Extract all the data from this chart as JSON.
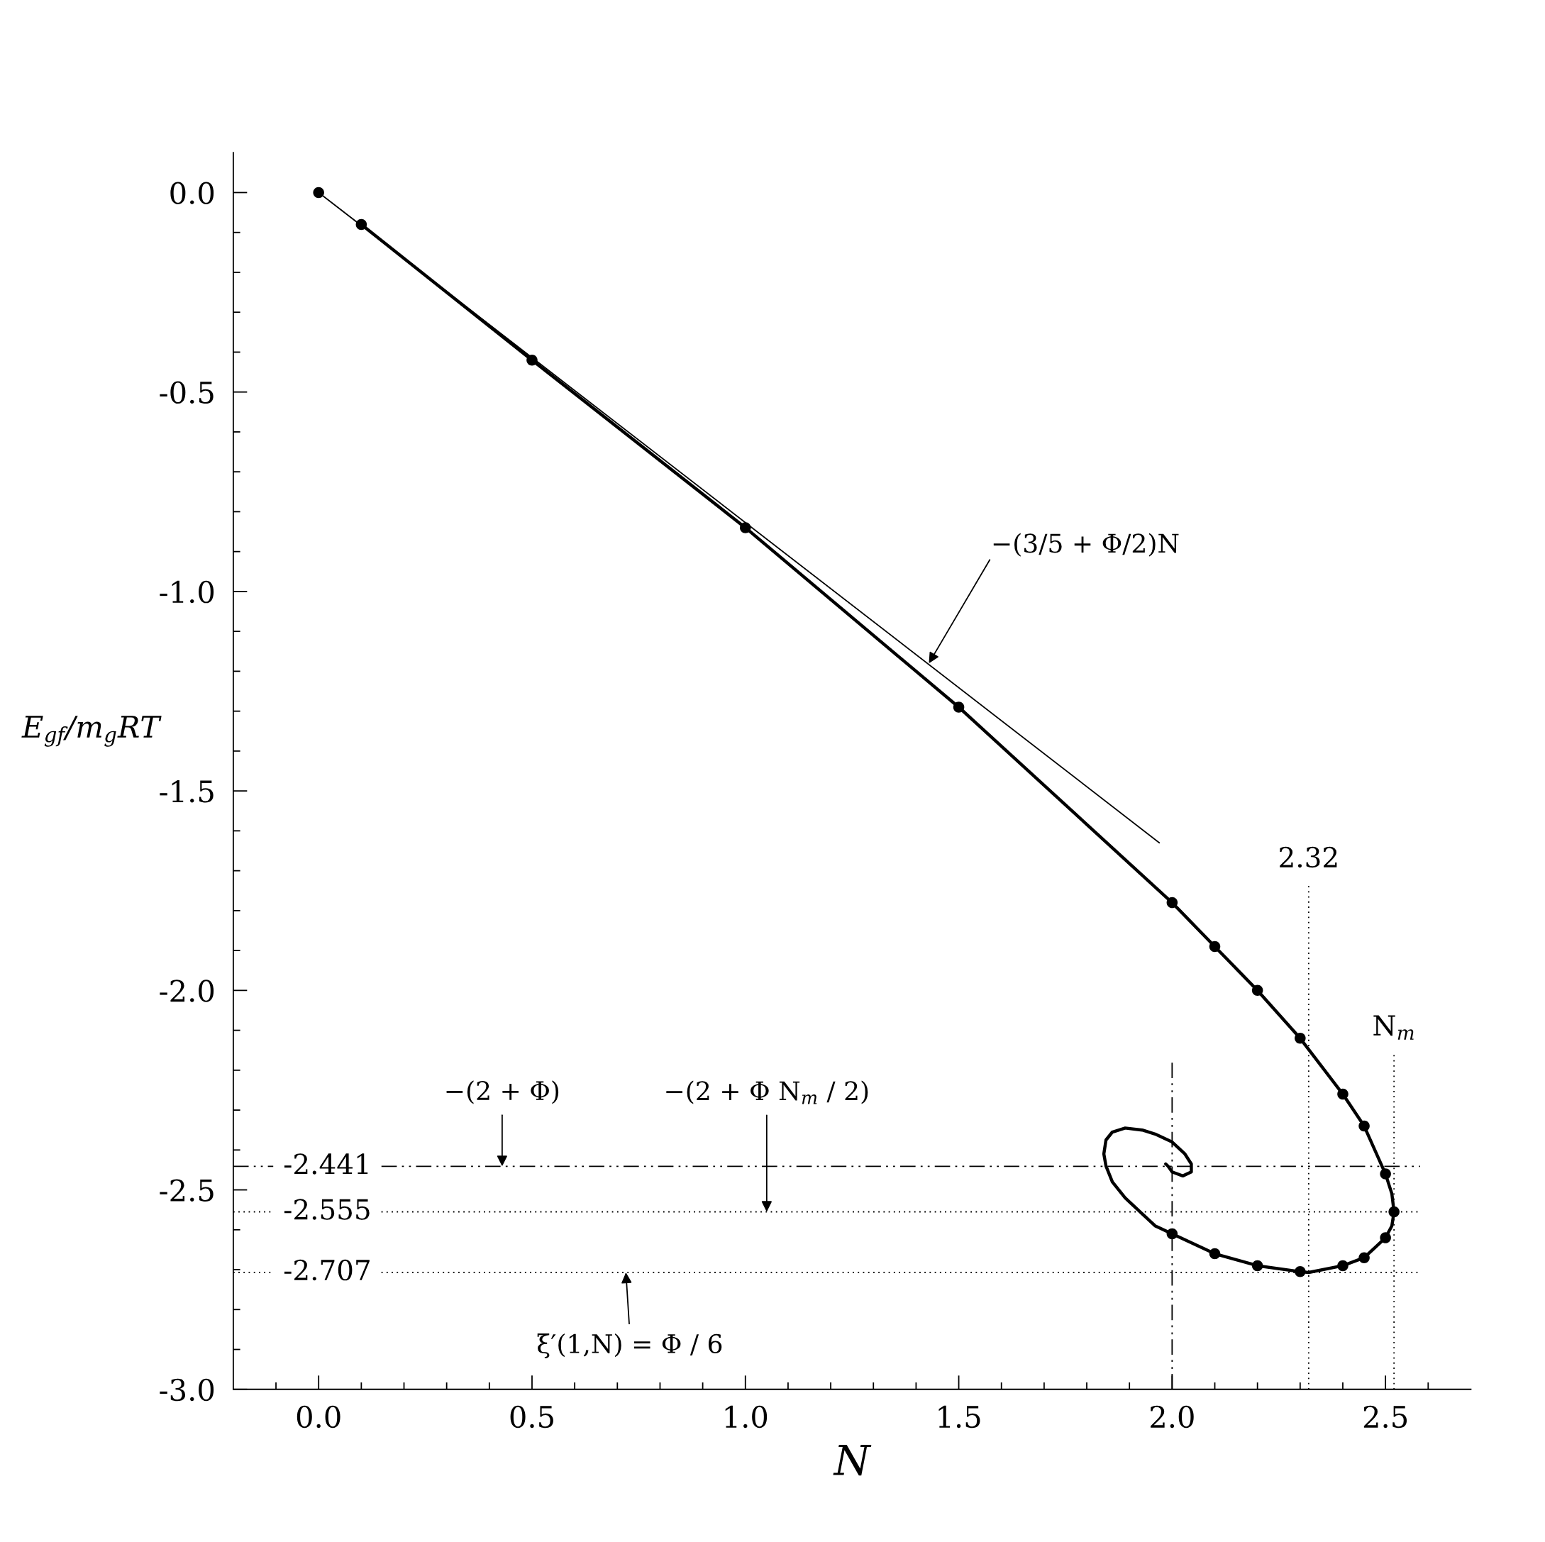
{
  "chart_data": {
    "type": "line",
    "xlabel": "N",
    "ylabel": "E$_{gf}$/m$_{g}$RT",
    "xlim": [
      -0.2,
      2.7
    ],
    "ylim": [
      -3.0,
      0.1
    ],
    "xticks": [
      {
        "value": -0.1,
        "label": null
      },
      {
        "value": 0,
        "label": "0.0"
      },
      {
        "value": 0.1,
        "label": null
      },
      {
        "value": 0.2,
        "label": null
      },
      {
        "value": 0.3,
        "label": null
      },
      {
        "value": 0.4,
        "label": null
      },
      0.5,
      {
        "value": 0.6,
        "label": null
      },
      {
        "value": 0.7,
        "label": null
      },
      {
        "value": 0.8,
        "label": null
      },
      {
        "value": 0.9,
        "label": null
      },
      {
        "value": 1,
        "label": "1.0"
      },
      {
        "value": 1.1,
        "label": null
      },
      {
        "value": 1.2,
        "label": null
      },
      {
        "value": 1.3,
        "label": null
      },
      {
        "value": 1.4,
        "label": null
      },
      1.5,
      {
        "value": 1.6,
        "label": null
      },
      {
        "value": 1.7,
        "label": null
      },
      {
        "value": 1.8,
        "label": null
      },
      {
        "value": 1.9,
        "label": null
      },
      {
        "value": 2,
        "label": "2.0"
      },
      {
        "value": 2.1,
        "label": null
      },
      {
        "value": 2.2,
        "label": null
      },
      {
        "value": 2.3,
        "label": null
      },
      {
        "value": 2.4,
        "label": null
      },
      2.5,
      {
        "value": 2.6,
        "label": null
      }
    ],
    "yticks": [
      {
        "value": 0,
        "label": "0.0"
      },
      {
        "value": -0.1,
        "label": null
      },
      {
        "value": -0.2,
        "label": null
      },
      {
        "value": -0.3,
        "label": null
      },
      {
        "value": -0.4,
        "label": null
      },
      -0.5,
      {
        "value": -0.6,
        "label": null
      },
      {
        "value": -0.7,
        "label": null
      },
      {
        "value": -0.8,
        "label": null
      },
      {
        "value": -0.9,
        "label": null
      },
      {
        "value": -1,
        "label": "-1.0"
      },
      {
        "value": -1.1,
        "label": null
      },
      {
        "value": -1.2,
        "label": null
      },
      {
        "value": -1.3,
        "label": null
      },
      {
        "value": -1.4,
        "label": null
      },
      -1.5,
      {
        "value": -1.6,
        "label": null
      },
      {
        "value": -1.7,
        "label": null
      },
      {
        "value": -1.8,
        "label": null
      },
      {
        "value": -1.9,
        "label": null
      },
      {
        "value": -2,
        "label": "-2.0"
      },
      {
        "value": -2.1,
        "label": null
      },
      {
        "value": -2.2,
        "label": null
      },
      {
        "value": -2.3,
        "label": null
      },
      {
        "value": -2.4,
        "label": null
      },
      -2.5,
      {
        "value": -2.6,
        "label": null
      },
      {
        "value": -2.7,
        "label": null
      },
      {
        "value": -2.8,
        "label": null
      },
      {
        "value": -2.9,
        "label": null
      },
      {
        "value": -3,
        "label": "-3.0"
      }
    ],
    "series": [
      {
        "color": "#000000",
        "x": [
          0.1,
          0.5,
          1.0,
          1.5,
          2.0,
          2.1,
          2.2,
          2.3,
          2.4,
          2.45,
          2.5,
          2.515,
          2.52,
          2.515,
          2.5,
          2.45,
          2.4,
          2.32,
          2.3,
          2.2,
          2.1,
          2.0,
          1.96,
          1.93,
          1.89,
          1.86,
          1.845,
          1.84,
          1.845,
          1.86,
          1.89,
          1.93,
          1.96,
          2.0,
          2.03,
          2.045,
          2.045,
          2.025,
          2.0,
          1.99,
          1.985
        ],
        "values": [
          -0.08,
          -0.42,
          -0.84,
          -1.29,
          -1.78,
          -1.89,
          -2.0,
          -2.12,
          -2.26,
          -2.34,
          -2.46,
          -2.51,
          -2.555,
          -2.59,
          -2.62,
          -2.67,
          -2.69,
          -2.707,
          -2.705,
          -2.69,
          -2.66,
          -2.61,
          -2.59,
          -2.56,
          -2.52,
          -2.48,
          -2.44,
          -2.41,
          -2.375,
          -2.355,
          -2.345,
          -2.35,
          -2.36,
          -2.38,
          -2.41,
          -2.435,
          -2.455,
          -2.465,
          -2.455,
          -2.44,
          -2.435
        ]
      },
      {
        "type": "scatter",
        "color": "#000000",
        "marker": "circle",
        "x": [
          0.0,
          0.1,
          0.5,
          1.0,
          1.5,
          2.0,
          2.1,
          2.2,
          2.3,
          2.4,
          2.45,
          2.5,
          2.52,
          2.5,
          2.45,
          2.4,
          2.3,
          2.2,
          2.1,
          2.0
        ],
        "values": [
          0.0,
          -0.08,
          -0.42,
          -0.84,
          -1.29,
          -1.78,
          -1.89,
          -2.0,
          -2.12,
          -2.26,
          -2.34,
          -2.46,
          -2.555,
          -2.62,
          -2.67,
          -2.69,
          -2.705,
          -2.69,
          -2.66,
          -2.61
        ]
      },
      {
        "color": "#000000",
        "x": [
          0.0,
          1.97
        ],
        "values": [
          0.0,
          -1.63
        ]
      }
    ],
    "ref_lines": [
      {
        "axis": "y",
        "value": -2.441,
        "label": "-2.441",
        "line_style": "dashdot",
        "color": "#000000"
      },
      {
        "axis": "y",
        "value": -2.555,
        "label": "-2.555",
        "line_style": "dotted",
        "color": "#000000"
      },
      {
        "axis": "y",
        "value": -2.707,
        "label": "-2.707",
        "line_style": "dotted",
        "color": "#000000"
      },
      {
        "axis": "x",
        "value": 2.0,
        "line_style": "dashdot",
        "color": "#000000"
      },
      {
        "axis": "x",
        "value": 2.32,
        "label": "2.32",
        "line_style": "dotted",
        "color": "#000000"
      },
      {
        "axis": "x",
        "value": 2.52,
        "label": "N$_{m}$",
        "line_style": "dotted",
        "color": "#000000"
      }
    ],
    "annotations": [
      {
        "text": "−(3/5 + Φ/2)N",
        "x": 1.43,
        "y": -1.18
      },
      {
        "text": "−(2 + Φ)",
        "x": 0.43,
        "y": -2.441
      },
      {
        "text": "−(2 + Φ N$_{m}$ / 2)",
        "x": 1.05,
        "y": -2.555
      },
      {
        "text": "ξ′(1,N) = Φ / 6",
        "x": 0.72,
        "y": -2.707
      }
    ]
  }
}
